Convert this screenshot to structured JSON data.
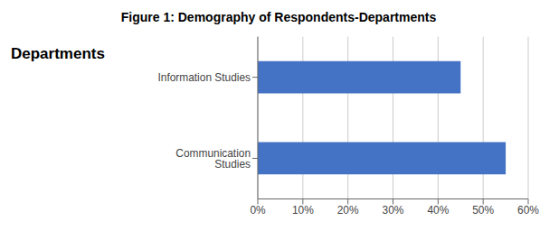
{
  "chart_data": {
    "type": "bar",
    "title": "Figure 1: Demography of Respondents-Departments",
    "ylabel": "Departments",
    "orientation": "horizontal",
    "categories": [
      "Communication Studies",
      "Information Studies"
    ],
    "values": [
      0.55,
      0.45
    ],
    "color": "#4472C4",
    "xlim": [
      0,
      0.6
    ],
    "xticks": [
      {
        "value": 0.0,
        "label": "0%"
      },
      {
        "value": 0.1,
        "label": "10%"
      },
      {
        "value": 0.2,
        "label": "20%"
      },
      {
        "value": 0.3,
        "label": "30%"
      },
      {
        "value": 0.4,
        "label": "40%"
      },
      {
        "value": 0.5,
        "label": "50%"
      },
      {
        "value": 0.6,
        "label": "60%"
      }
    ],
    "grid": true
  }
}
